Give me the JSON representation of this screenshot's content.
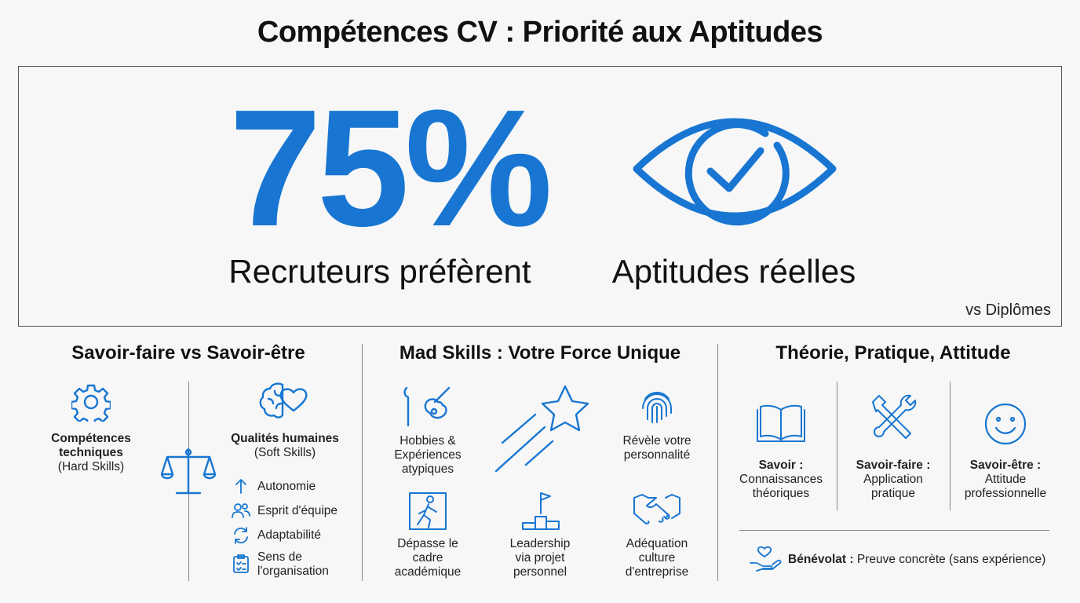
{
  "title": "Compétences CV : Priorité aux Aptitudes",
  "hero": {
    "stat": "75%",
    "left_caption": "Recruteurs préfèrent",
    "right_caption": "Aptitudes réelles",
    "note": "vs Diplômes"
  },
  "sections": [
    {
      "title": "Savoir-faire vs Savoir-être",
      "hard": {
        "label": "Compétences techniques",
        "sub": "(Hard Skills)"
      },
      "soft": {
        "label": "Qualités humaines",
        "sub": "(Soft Skills)"
      },
      "soft_list": [
        "Autonomie",
        "Esprit d'équipe",
        "Adaptabilité",
        "Sens de l'organisation"
      ]
    },
    {
      "title": "Mad Skills : Votre Force Unique",
      "items": [
        "Hobbies & Expériences atypiques",
        "Révèle votre personnalité",
        "Dépasse le cadre académique",
        "Leadership via projet personnel",
        "Adéquation culture d'entreprise"
      ]
    },
    {
      "title": "Théorie, Pratique, Attitude",
      "items": [
        {
          "label": "Savoir :",
          "text": "Connaissances théoriques"
        },
        {
          "label": "Savoir-faire :",
          "text": "Application pratique"
        },
        {
          "label": "Savoir-être :",
          "text": "Attitude professionnelle"
        }
      ],
      "footer": {
        "label": "Bénévolat :",
        "text": "Preuve concrète (sans expérience)"
      }
    }
  ]
}
